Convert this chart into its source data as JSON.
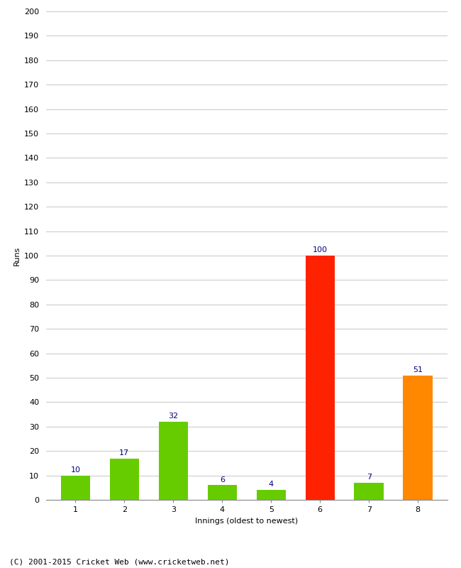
{
  "xlabel": "Innings (oldest to newest)",
  "ylabel": "Runs",
  "categories": [
    "1",
    "2",
    "3",
    "4",
    "5",
    "6",
    "7",
    "8"
  ],
  "values": [
    10,
    17,
    32,
    6,
    4,
    100,
    7,
    51
  ],
  "bar_colors": [
    "#66cc00",
    "#66cc00",
    "#66cc00",
    "#66cc00",
    "#66cc00",
    "#ff2200",
    "#66cc00",
    "#ff8800"
  ],
  "ylim": [
    0,
    200
  ],
  "yticks": [
    0,
    10,
    20,
    30,
    40,
    50,
    60,
    70,
    80,
    90,
    100,
    110,
    120,
    130,
    140,
    150,
    160,
    170,
    180,
    190,
    200
  ],
  "label_color": "#000080",
  "label_fontsize": 8,
  "footer": "(C) 2001-2015 Cricket Web (www.cricketweb.net)",
  "background_color": "#ffffff",
  "grid_color": "#cccccc",
  "ylabel_fontsize": 8,
  "xlabel_fontsize": 8,
  "tick_fontsize": 8,
  "footer_fontsize": 8,
  "bar_width": 0.6
}
